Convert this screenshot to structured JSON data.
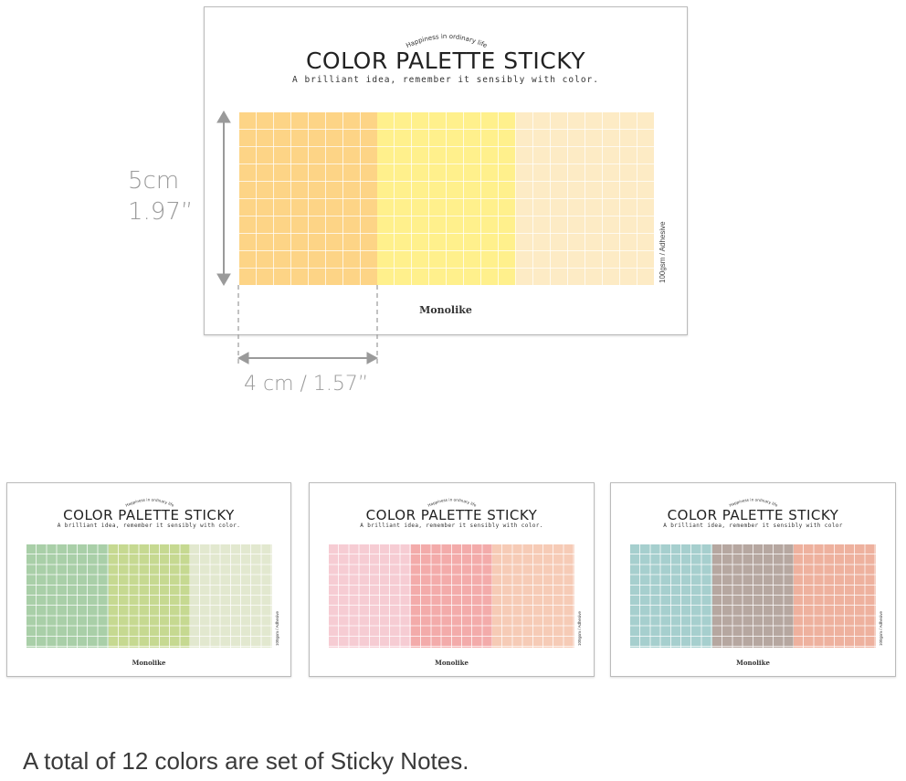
{
  "product": {
    "tagline": "Happiness in ordinary life",
    "title": "COLOR PALETTE STICKY",
    "subtitle": "A brilliant idea, remember it sensibly with color.",
    "subtitle_alt": "A brilliant idea, remember it sensibly with color",
    "brand": "Monolike",
    "spec": "100gsm / Adhesive"
  },
  "dimensions": {
    "height_cm": "5cm",
    "height_in": "1.97”",
    "width": "4 cm / 1.57”"
  },
  "palettes": [
    {
      "colors": [
        "#fdd486",
        "#fff08c",
        "#fdebc5"
      ]
    },
    {
      "colors": [
        "#a9cfa8",
        "#c6d991",
        "#e2e8cf"
      ]
    },
    {
      "colors": [
        "#f6ccd3",
        "#f3abaa",
        "#f6cbb6"
      ]
    },
    {
      "colors": [
        "#a6cfce",
        "#b6a7a0",
        "#eeb19e"
      ]
    }
  ],
  "footer": "A total of 12 colors are set of Sticky Notes."
}
